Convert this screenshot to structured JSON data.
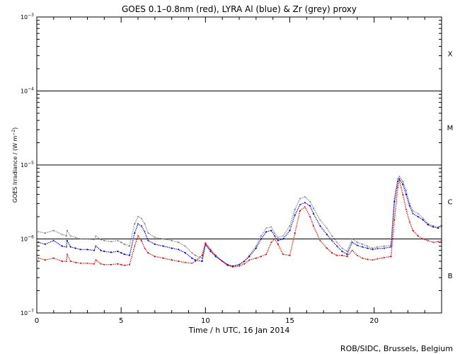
{
  "chart_data": {
    "type": "scatter",
    "title": "GOES 0.1–0.8nm (red), LYRA Al (blue) & Zr (grey) proxy",
    "xlabel": "Time / h UTC, 16 Jan 2014",
    "ylabel_main": "GOES Irradiance / (W m",
    "ylabel_exp": "−2",
    "ylabel_close": ")",
    "credit": "ROB/SIDC, Brussels, Belgium",
    "x_scale": "linear",
    "y_scale": "log",
    "xlim": [
      0,
      24
    ],
    "ylim": [
      1e-07,
      0.001
    ],
    "x_ticks": [
      {
        "value": 0,
        "label": "0"
      },
      {
        "value": 5,
        "label": "5"
      },
      {
        "value": 10,
        "label": "10"
      },
      {
        "value": 15,
        "label": "15"
      },
      {
        "value": 20,
        "label": "20"
      }
    ],
    "y_ticks": [
      {
        "value": 0.001,
        "base": "10",
        "exp": "−3"
      },
      {
        "value": 0.0001,
        "base": "10",
        "exp": "−4"
      },
      {
        "value": 1e-05,
        "base": "10",
        "exp": "−5"
      },
      {
        "value": 1e-06,
        "base": "10",
        "exp": "−6"
      },
      {
        "value": 1e-07,
        "base": "10",
        "exp": "−7"
      }
    ],
    "threshold_lines": [
      0.0001,
      1e-05,
      1e-06
    ],
    "flare_classes": [
      {
        "label": "X",
        "value": 0.00032
      },
      {
        "label": "M",
        "value": 3.2e-05
      },
      {
        "label": "C",
        "value": 3.2e-06
      },
      {
        "label": "B",
        "value": 3.2e-07
      }
    ],
    "series": [
      {
        "color": "#808080",
        "x": [
          0.1,
          0.5,
          1.0,
          1.5,
          1.75,
          1.8,
          2.0,
          2.3,
          2.6,
          3.0,
          3.4,
          3.5,
          3.8,
          4.0,
          4.4,
          4.8,
          5.0,
          5.2,
          5.5,
          5.8,
          6.0,
          6.2,
          6.4,
          6.6,
          7.0,
          7.5,
          8.0,
          8.4,
          8.8,
          9.2,
          9.4,
          9.8,
          10.0,
          10.3,
          10.6,
          11.0,
          11.3,
          11.6,
          12.0,
          12.3,
          12.6,
          13.0,
          13.3,
          13.6,
          13.9,
          14.1,
          14.3,
          14.6,
          15.0,
          15.3,
          15.6,
          15.9,
          16.2,
          16.4,
          16.8,
          17.2,
          17.5,
          17.8,
          18.1,
          18.4,
          18.7,
          19.0,
          19.3,
          19.6,
          19.9,
          20.2,
          20.6,
          21.0,
          21.2,
          21.4,
          21.5,
          21.7,
          21.9,
          22.1,
          22.3,
          22.6,
          22.9,
          23.2,
          23.5,
          23.8,
          24.0
        ],
        "y": [
          1.25e-06,
          1.2e-06,
          1.3e-06,
          1.15e-06,
          1.1e-06,
          1.3e-06,
          1.1e-06,
          1.05e-06,
          1e-06,
          1e-06,
          9.8e-07,
          1.1e-06,
          9.8e-07,
          9.5e-07,
          9.2e-07,
          9.5e-07,
          9e-07,
          8.5e-07,
          8e-07,
          1.6e-06,
          2e-06,
          1.9e-06,
          1.6e-06,
          1.2e-06,
          1.05e-06,
          1e-06,
          9.5e-07,
          9e-07,
          8e-07,
          6.5e-07,
          6e-07,
          5.5e-07,
          8.5e-07,
          7e-07,
          6e-07,
          5e-07,
          4.5e-07,
          4.2e-07,
          4.5e-07,
          5e-07,
          6e-07,
          8e-07,
          1.1e-06,
          1.4e-06,
          1.45e-06,
          1.2e-06,
          1.05e-06,
          1.1e-06,
          1.5e-06,
          2.5e-06,
          3.5e-06,
          3.7e-06,
          3.2e-06,
          2.6e-06,
          1.8e-06,
          1.4e-06,
          1.1e-06,
          9e-07,
          7.5e-07,
          6.8e-07,
          1e-06,
          9e-07,
          8.5e-07,
          8e-07,
          7.5e-07,
          7.8e-07,
          8e-07,
          8.2e-07,
          3.5e-06,
          6.5e-06,
          7e-06,
          6e-06,
          4.5e-06,
          3e-06,
          2.4e-06,
          2.2e-06,
          1.9e-06,
          1.6e-06,
          1.5e-06,
          1.45e-06,
          1.55e-06
        ]
      },
      {
        "color": "#0000cc",
        "x": [
          0.1,
          0.5,
          1.0,
          1.5,
          1.75,
          1.8,
          2.0,
          2.3,
          2.6,
          3.0,
          3.4,
          3.5,
          3.8,
          4.0,
          4.4,
          4.8,
          5.0,
          5.2,
          5.5,
          5.8,
          6.0,
          6.2,
          6.4,
          6.6,
          7.0,
          7.5,
          8.0,
          8.4,
          8.8,
          9.2,
          9.4,
          9.8,
          10.0,
          10.3,
          10.6,
          11.0,
          11.3,
          11.6,
          12.0,
          12.3,
          12.6,
          13.0,
          13.3,
          13.6,
          13.9,
          14.1,
          14.3,
          14.6,
          15.0,
          15.3,
          15.6,
          15.9,
          16.2,
          16.4,
          16.8,
          17.2,
          17.5,
          17.8,
          18.1,
          18.4,
          18.7,
          19.0,
          19.3,
          19.6,
          19.9,
          20.2,
          20.6,
          21.0,
          21.2,
          21.4,
          21.5,
          21.7,
          21.9,
          22.1,
          22.3,
          22.6,
          22.9,
          23.2,
          23.5,
          23.8,
          24.0
        ],
        "y": [
          9e-07,
          8.5e-07,
          9.5e-07,
          8e-07,
          7.8e-07,
          9.5e-07,
          7.8e-07,
          7.5e-07,
          7.2e-07,
          7.2e-07,
          7e-07,
          8e-07,
          7e-07,
          6.8e-07,
          6.6e-07,
          6.8e-07,
          6.5e-07,
          6.2e-07,
          6e-07,
          1.2e-06,
          1.6e-06,
          1.5e-06,
          1.25e-06,
          9.5e-07,
          8.5e-07,
          8e-07,
          7.5e-07,
          7.2e-07,
          6.5e-07,
          5.5e-07,
          5.2e-07,
          5e-07,
          8.5e-07,
          6.8e-07,
          5.8e-07,
          5e-07,
          4.5e-07,
          4.3e-07,
          4.5e-07,
          5e-07,
          5.8e-07,
          7.5e-07,
          1e-06,
          1.25e-06,
          1.3e-06,
          1.1e-06,
          9.5e-07,
          1e-06,
          1.3e-06,
          2.1e-06,
          2.9e-06,
          3.1e-06,
          2.8e-06,
          2.2e-06,
          1.5e-06,
          1.15e-06,
          9.5e-07,
          8e-07,
          6.8e-07,
          6.2e-07,
          9e-07,
          8.2e-07,
          7.8e-07,
          7.5e-07,
          7.2e-07,
          7.4e-07,
          7.5e-07,
          7.8e-07,
          3.2e-06,
          6e-06,
          6.5e-06,
          5.5e-06,
          4e-06,
          2.8e-06,
          2.2e-06,
          2e-06,
          1.8e-06,
          1.55e-06,
          1.45e-06,
          1.4e-06,
          1.5e-06
        ]
      },
      {
        "color": "#dd0000",
        "x": [
          0.1,
          0.5,
          1.0,
          1.5,
          1.75,
          1.8,
          2.0,
          2.3,
          2.6,
          3.0,
          3.4,
          3.5,
          3.8,
          4.0,
          4.4,
          4.8,
          5.0,
          5.2,
          5.5,
          5.8,
          6.0,
          6.2,
          6.4,
          6.6,
          7.0,
          7.5,
          8.0,
          8.4,
          8.8,
          9.2,
          9.4,
          9.8,
          10.0,
          10.3,
          10.6,
          11.0,
          11.3,
          11.6,
          12.0,
          12.3,
          12.6,
          13.0,
          13.3,
          13.6,
          13.9,
          14.1,
          14.3,
          14.6,
          15.0,
          15.3,
          15.6,
          15.9,
          16.2,
          16.4,
          16.8,
          17.2,
          17.5,
          17.8,
          18.1,
          18.4,
          18.7,
          19.0,
          19.3,
          19.6,
          19.9,
          20.2,
          20.6,
          21.0,
          21.2,
          21.4,
          21.5,
          21.7,
          21.9,
          22.1,
          22.3,
          22.6,
          22.9,
          23.2,
          23.5,
          23.8,
          24.0
        ],
        "y": [
          5.5e-07,
          5.2e-07,
          5.5e-07,
          5e-07,
          5e-07,
          6.2e-07,
          5e-07,
          4.8e-07,
          4.7e-07,
          4.7e-07,
          4.6e-07,
          5.2e-07,
          4.6e-07,
          4.5e-07,
          4.5e-07,
          4.6e-07,
          4.5e-07,
          4.4e-07,
          4.5e-07,
          8e-07,
          1.1e-06,
          9.5e-07,
          7.5e-07,
          6.5e-07,
          5.8e-07,
          5.5e-07,
          5.2e-07,
          5e-07,
          4.8e-07,
          4.7e-07,
          5e-07,
          6e-07,
          8.8e-07,
          7.2e-07,
          6e-07,
          5e-07,
          4.4e-07,
          4.2e-07,
          4.3e-07,
          4.6e-07,
          5.2e-07,
          5.5e-07,
          5.8e-07,
          6.2e-07,
          9e-07,
          1e-06,
          8.5e-07,
          6.2e-07,
          6e-07,
          1.2e-06,
          2.4e-06,
          2.7e-06,
          2e-06,
          1.5e-06,
          9.5e-07,
          7.5e-07,
          6.5e-07,
          6e-07,
          6e-07,
          5.8e-07,
          7e-07,
          6e-07,
          5.5e-07,
          5.3e-07,
          5.2e-07,
          5.4e-07,
          5.6e-07,
          5.8e-07,
          1.8e-06,
          5e-06,
          6.2e-06,
          4e-06,
          2.5e-06,
          1.7e-06,
          1.3e-06,
          1.1e-06,
          1e-06,
          9.5e-07,
          9e-07,
          9.2e-07,
          9.5e-07
        ]
      }
    ]
  }
}
